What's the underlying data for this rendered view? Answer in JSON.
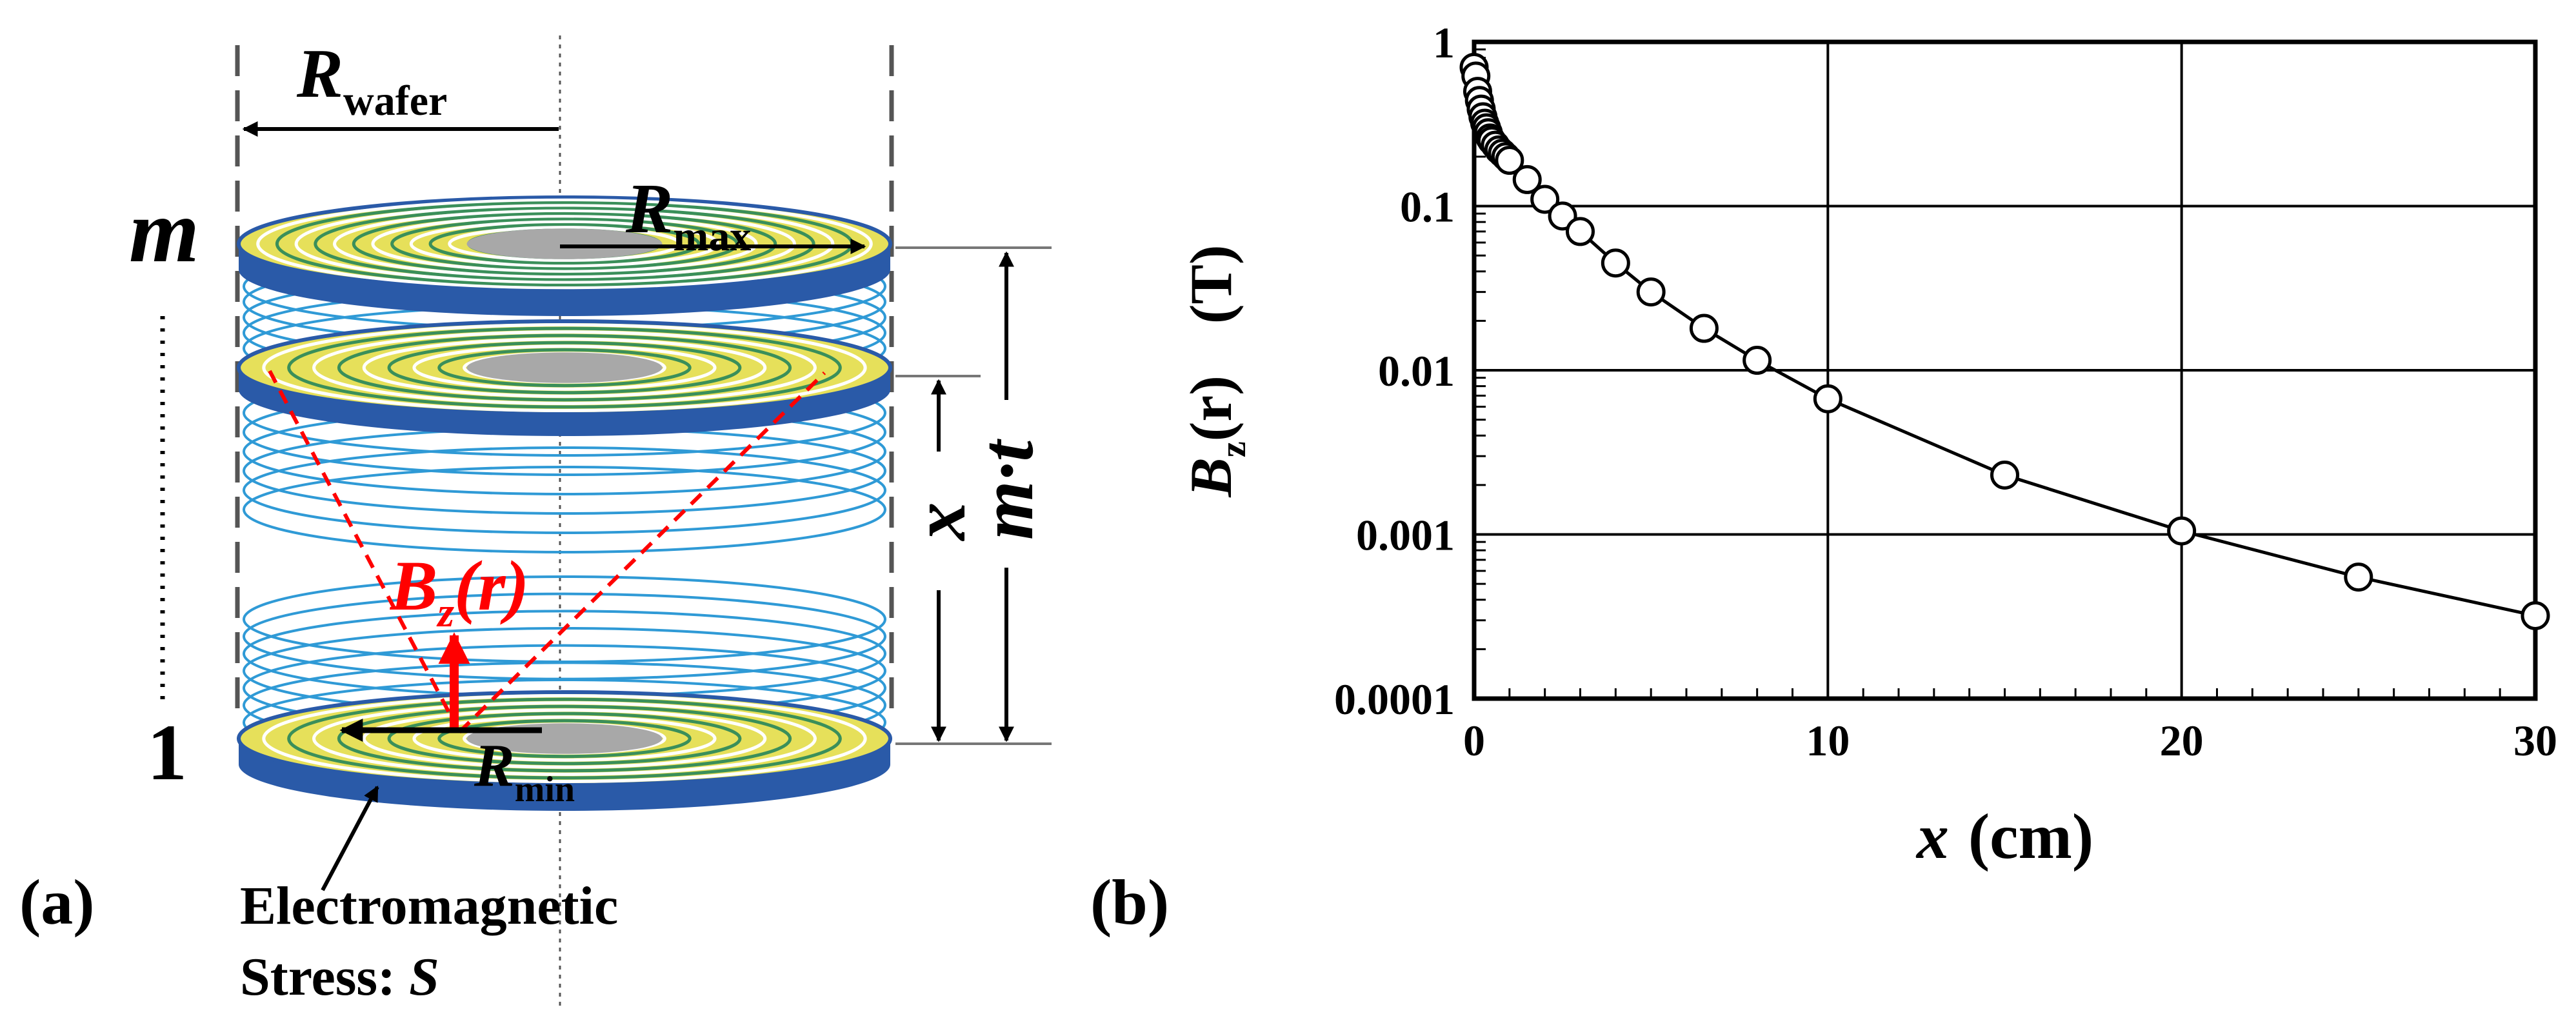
{
  "panel_a": {
    "label": "(a)",
    "r_wafer": {
      "main": "R",
      "sub": "wafer"
    },
    "r_max": {
      "main": "R",
      "sub": "max"
    },
    "r_min": {
      "main": "R",
      "sub": "min"
    },
    "layer_top": "m",
    "layer_bottom": "1",
    "field": {
      "main": "B",
      "sub": "z",
      "arg": "(r)"
    },
    "x_label": "x",
    "mt_label": "m·t",
    "stress_line1": "Electromagnetic",
    "stress_line2_prefix": "Stress: ",
    "stress_line2_var": "S",
    "colors": {
      "disk_fill": "#e6e05a",
      "disk_rim": "#2a5aa8",
      "coil": "#2f9ad6",
      "field": "#ff0000",
      "core": "#a8a8a8"
    }
  },
  "panel_b": {
    "label": "(b)",
    "ylabel": {
      "main": "B",
      "sub": "z",
      "arg": "(r)",
      "unit": "(T)"
    },
    "xlabel": {
      "var": "x",
      "unit": "(cm)"
    }
  },
  "chart_data": {
    "type": "scatter",
    "title": "",
    "xlabel": "x (cm)",
    "ylabel": "Bz(r) (T)",
    "xlim": [
      0,
      30
    ],
    "ylim": [
      0.0001,
      1
    ],
    "yscale": "log",
    "grid": true,
    "x_ticks": [
      0,
      10,
      20,
      30
    ],
    "x_tick_labels": [
      "0",
      "10",
      "20",
      "30"
    ],
    "y_ticks": [
      1,
      0.1,
      0.01,
      0.001,
      0.0001
    ],
    "y_tick_labels": [
      "1",
      "0.1",
      "0.01",
      "0.001",
      "0.0001"
    ],
    "series": [
      {
        "name": "Bz(r)",
        "marker": "open-circle",
        "line": "solid",
        "x": [
          0,
          0.05,
          0.1,
          0.15,
          0.2,
          0.25,
          0.3,
          0.35,
          0.4,
          0.45,
          0.5,
          0.6,
          0.7,
          0.8,
          0.9,
          1,
          1.5,
          2,
          2.5,
          3,
          4,
          5,
          6.5,
          8,
          10,
          15,
          20,
          25,
          30
        ],
        "y": [
          0.7,
          0.62,
          0.5,
          0.44,
          0.39,
          0.35,
          0.32,
          0.3,
          0.28,
          0.26,
          0.25,
          0.235,
          0.22,
          0.21,
          0.2,
          0.19,
          0.145,
          0.11,
          0.087,
          0.07,
          0.045,
          0.03,
          0.018,
          0.0115,
          0.0067,
          0.0023,
          0.00105,
          0.00055,
          0.00032
        ]
      }
    ]
  }
}
